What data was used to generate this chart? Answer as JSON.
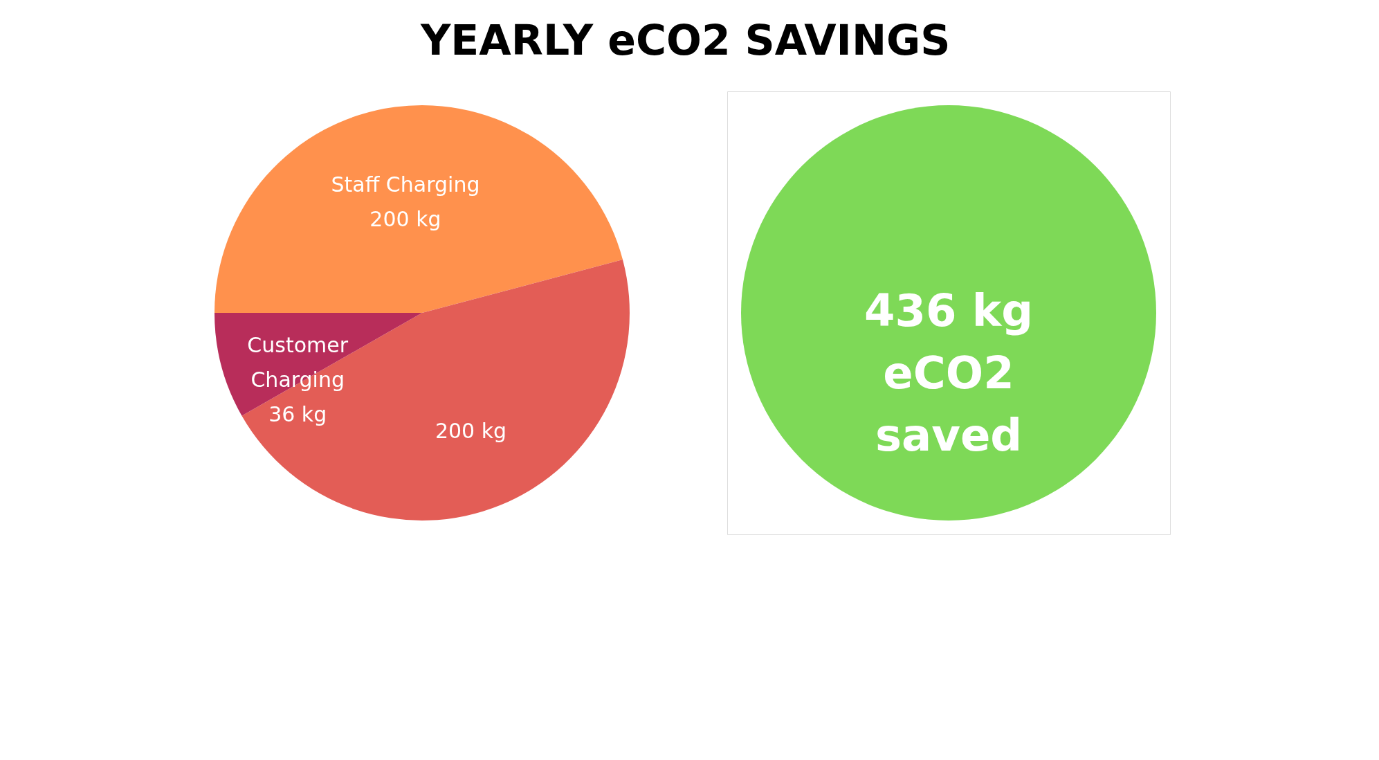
{
  "chart_data": [
    {
      "type": "pie",
      "title": "YEARLY eCO2 SAVINGS",
      "categories": [
        "Staff Charging",
        null,
        "Customer Charging"
      ],
      "values": [
        200,
        200,
        36
      ],
      "value_labels": [
        "200 kg",
        "200 kg",
        "36 kg"
      ],
      "colors": [
        "#ff914d",
        "#e35d56",
        "#b82d5a"
      ]
    },
    {
      "type": "other",
      "annotations": [
        "436 kg",
        "eCO2",
        "saved"
      ],
      "colors": [
        "#7ed957"
      ]
    }
  ]
}
